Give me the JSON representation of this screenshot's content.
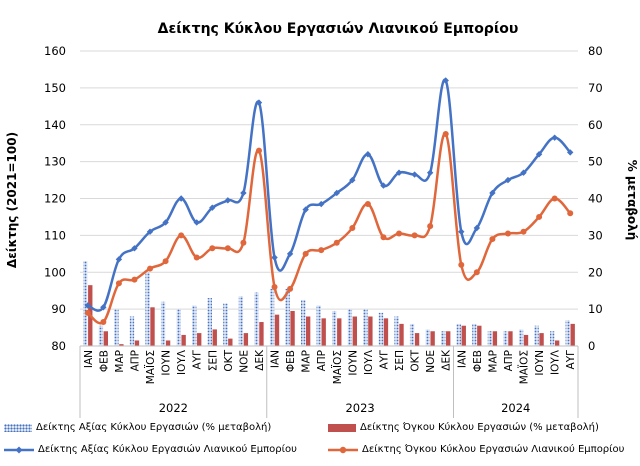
{
  "chart_data": {
    "type": "bar+line",
    "title": "Δείκτης Κύκλου Εργασιών Λιανικού Εμπορίου",
    "ylabel_left": "Δείκτης (2021=100)",
    "ylabel_right": "% μεταβολή",
    "ylim_left": [
      80,
      160
    ],
    "yticks_left": [
      80,
      90,
      100,
      110,
      120,
      130,
      140,
      150,
      160
    ],
    "ylim_right": [
      0,
      80
    ],
    "yticks_right": [
      0,
      10,
      20,
      30,
      40,
      50,
      60,
      70,
      80
    ],
    "months": [
      "ΙΑΝ",
      "ΦΕΒ",
      "ΜΑΡ",
      "ΑΠΡ",
      "ΜΑΪΟΣ",
      "ΙΟΥΝ",
      "ΙΟΥΛ",
      "ΑΥΓ",
      "ΣΕΠ",
      "ΟΚΤ",
      "ΝΟΕ",
      "ΔΕΚ",
      "ΙΑΝ",
      "ΦΕΒ",
      "ΜΑΡ",
      "ΑΠΡ",
      "ΜΑΪΟΣ",
      "ΙΟΥΝ",
      "ΙΟΥΛ",
      "ΑΥΓ",
      "ΣΕΠ",
      "ΟΚΤ",
      "ΝΟΕ",
      "ΔΕΚ",
      "ΙΑΝ",
      "ΦΕΒ",
      "ΜΑΡ",
      "ΑΠΡ",
      "ΜΑΪΟΣ",
      "ΙΟΥΝ",
      "ΙΟΥΛ",
      "ΑΥΓ"
    ],
    "years": [
      {
        "label": "2022",
        "start": 0,
        "count": 12
      },
      {
        "label": "2023",
        "start": 12,
        "count": 12
      },
      {
        "label": "2024",
        "start": 24,
        "count": 8
      }
    ],
    "series": [
      {
        "name": "Δείκτης Αξίας Κύκλου Εργασιών (% μεταβολή)",
        "kind": "bar",
        "axis": "right",
        "color": "#4472c4",
        "pattern": "dots",
        "values": [
          23.0,
          5.5,
          10.0,
          8.0,
          20.0,
          12.0,
          10.0,
          11.0,
          13.0,
          11.5,
          13.5,
          14.5,
          15.5,
          15.5,
          12.5,
          11.0,
          9.5,
          10.0,
          10.0,
          9.0,
          8.0,
          6.0,
          4.5,
          4.0,
          6.0,
          6.0,
          4.0,
          4.0,
          4.5,
          5.5,
          4.0,
          7.0
        ]
      },
      {
        "name": "Δείκτης Όγκου Κύκλου Εργασιών (% μεταβολή)",
        "kind": "bar",
        "axis": "right",
        "color": "#c0504d",
        "values": [
          16.5,
          4.0,
          0.5,
          1.5,
          10.5,
          1.5,
          3.0,
          3.5,
          4.5,
          2.0,
          3.5,
          6.5,
          8.5,
          9.5,
          8.0,
          7.5,
          7.5,
          8.0,
          8.0,
          7.5,
          6.0,
          3.5,
          4.0,
          4.0,
          5.5,
          5.5,
          4.0,
          4.0,
          3.0,
          3.5,
          1.5,
          6.0
        ]
      },
      {
        "name": "Δείκτης Αξίας Κύκλου Εργασιών Λιανικού Εμπορίου",
        "kind": "line",
        "axis": "left",
        "color": "#4472c4",
        "marker": "diamond",
        "values": [
          91.0,
          90.5,
          103.5,
          106.5,
          111.0,
          113.5,
          120.0,
          113.5,
          117.5,
          119.5,
          121.5,
          146.0,
          104.0,
          105.0,
          117.0,
          118.5,
          121.5,
          125.0,
          132.0,
          123.5,
          127.0,
          126.5,
          127.0,
          152.0,
          111.0,
          112.0,
          121.5,
          125.0,
          127.0,
          132.0,
          136.5,
          132.5
        ]
      },
      {
        "name": "Δείκτης Όγκου Κύκλου Εργασιών Λιανικού Εμπορίου",
        "kind": "line",
        "axis": "left",
        "color": "#e0673b",
        "marker": "circle",
        "values": [
          89.0,
          86.5,
          97.0,
          98.0,
          101.0,
          103.0,
          110.0,
          104.0,
          106.5,
          106.5,
          108.0,
          133.0,
          96.0,
          95.5,
          105.0,
          106.0,
          108.0,
          112.0,
          118.5,
          109.5,
          110.5,
          110.0,
          112.5,
          137.5,
          102.0,
          100.0,
          109.0,
          110.5,
          111.0,
          115.0,
          120.0,
          116.0
        ]
      }
    ],
    "grid": {
      "horizontal": true,
      "vertical": false
    },
    "legend_position": "bottom"
  }
}
